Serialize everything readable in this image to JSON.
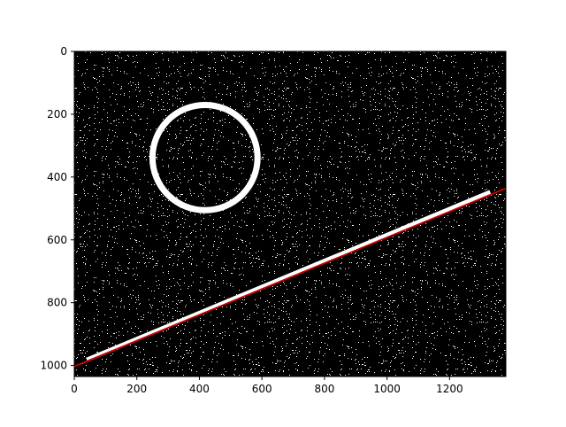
{
  "chart_data": {
    "type": "image_with_overlay",
    "title": "",
    "xlabel": "",
    "ylabel": "",
    "xlim": [
      0,
      1380
    ],
    "ylim": [
      1035,
      0
    ],
    "y_inverted": true,
    "grid": false,
    "xticks": [
      0,
      200,
      400,
      600,
      800,
      1000,
      1200
    ],
    "yticks": [
      0,
      200,
      400,
      600,
      800,
      1000
    ],
    "background_color": "#000000",
    "noise_color": "#ffffff",
    "noise_density": 0.11,
    "circle": {
      "cx": 418,
      "cy": 338,
      "r": 168,
      "color": "#ffffff"
    },
    "white_line": {
      "x0": 40,
      "y0": 982,
      "x1": 1330,
      "y1": 448,
      "color": "#ffffff"
    },
    "fitted_line": {
      "x0": 0,
      "y0": 1003,
      "x1": 1380,
      "y1": 436,
      "color": "#cc0000"
    }
  }
}
